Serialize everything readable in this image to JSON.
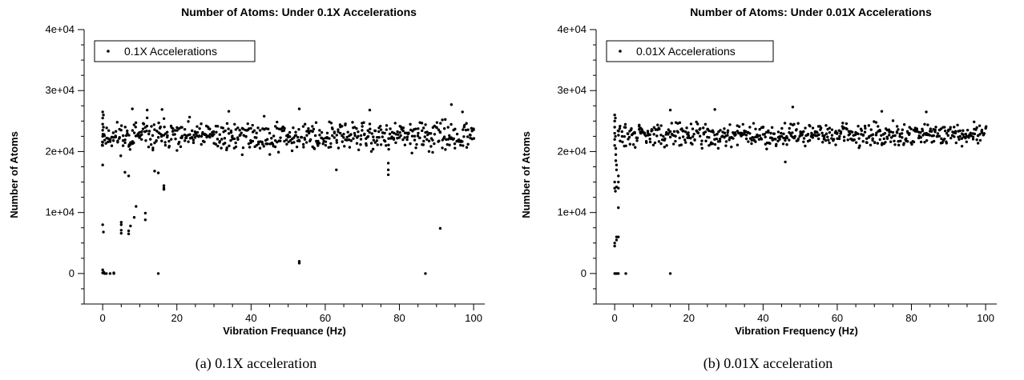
{
  "chart_data": [
    {
      "type": "scatter",
      "title": "Number of Atoms: Under 0.1X Accelerations",
      "xlabel": "Vibration Frequance (Hz)",
      "ylabel": "Number of Atoms",
      "xlim": [
        -5,
        103
      ],
      "ylim": [
        -5000,
        40000
      ],
      "xticks": [
        0,
        20,
        40,
        60,
        80,
        100
      ],
      "yticks": [
        0,
        10000,
        20000,
        30000,
        40000
      ],
      "ytick_labels": [
        "0",
        "1e+04",
        "2e+04",
        "3e+04",
        "4e+04"
      ],
      "legend": {
        "entries": [
          "0.1X Accelerations"
        ],
        "placement": "top-left"
      },
      "caption": "(a) 0.1X acceleration",
      "seed": 11,
      "series": [
        {
          "name": "0.1X Accelerations",
          "band": {
            "x_range": [
              0,
              100
            ],
            "x_step": 0.5,
            "y_min": 19000,
            "y_max": 26000,
            "per_step": 3
          },
          "points": [
            [
              0,
              26500
            ],
            [
              0,
              25500
            ],
            [
              0,
              24500
            ],
            [
              0,
              23500
            ],
            [
              0,
              22500
            ],
            [
              0,
              21500
            ],
            [
              0,
              21000
            ],
            [
              0.2,
              26000
            ],
            [
              0.2,
              24000
            ],
            [
              0,
              17800
            ],
            [
              0,
              8000
            ],
            [
              0.2,
              6800
            ],
            [
              0,
              600
            ],
            [
              0,
              100
            ],
            [
              0.3,
              200
            ],
            [
              0.5,
              0
            ],
            [
              1,
              0
            ],
            [
              2,
              0
            ],
            [
              3,
              0
            ],
            [
              3,
              100
            ],
            [
              5,
              6600
            ],
            [
              5,
              7100
            ],
            [
              5,
              8000
            ],
            [
              5,
              8400
            ],
            [
              7,
              6500
            ],
            [
              7,
              7000
            ],
            [
              7.5,
              7800
            ],
            [
              8.5,
              9200
            ],
            [
              9,
              11000
            ],
            [
              11.5,
              8800
            ],
            [
              11.5,
              9900
            ],
            [
              6,
              16600
            ],
            [
              7,
              16000
            ],
            [
              14,
              16800
            ],
            [
              15,
              16500
            ],
            [
              15,
              0
            ],
            [
              16.5,
              14400
            ],
            [
              16.5,
              13800
            ],
            [
              16.5,
              14000
            ],
            [
              53,
              2000
            ],
            [
              53,
              1700
            ],
            [
              63,
              17000
            ],
            [
              77,
              17000
            ],
            [
              77,
              16200
            ],
            [
              77,
              18100
            ],
            [
              87,
              0
            ],
            [
              91,
              7400
            ],
            [
              8,
              27000
            ],
            [
              12,
              26800
            ],
            [
              16,
              26900
            ],
            [
              34,
              26600
            ],
            [
              53,
              27000
            ],
            [
              72,
              26800
            ],
            [
              94,
              27700
            ],
            [
              97,
              26500
            ]
          ]
        }
      ]
    },
    {
      "type": "scatter",
      "title": "Number of Atoms: Under 0.01X Accelerations",
      "xlabel": "Vibration Frequency (Hz)",
      "ylabel": "Number of Atoms",
      "xlim": [
        -5,
        103
      ],
      "ylim": [
        -5000,
        40000
      ],
      "xticks": [
        0,
        20,
        40,
        60,
        80,
        100
      ],
      "yticks": [
        0,
        10000,
        20000,
        30000,
        40000
      ],
      "ytick_labels": [
        "0",
        "1e+04",
        "2e+04",
        "3e+04",
        "4e+04"
      ],
      "legend": {
        "entries": [
          "0.01X Accelerations"
        ],
        "placement": "top-left"
      },
      "caption": "(b) 0.01X acceleration",
      "seed": 29,
      "series": [
        {
          "name": "0.01X Accelerations",
          "band": {
            "x_range": [
              1,
              100
            ],
            "x_step": 0.5,
            "y_min": 20000,
            "y_max": 25500,
            "per_step": 3
          },
          "points": [
            [
              0,
              26000
            ],
            [
              0,
              25000
            ],
            [
              0,
              24000
            ],
            [
              0,
              23000
            ],
            [
              0,
              22000
            ],
            [
              0,
              21000
            ],
            [
              0.2,
              25500
            ],
            [
              0.2,
              22500
            ],
            [
              0.3,
              20500
            ],
            [
              0.3,
              19500
            ],
            [
              0.3,
              18500
            ],
            [
              0.5,
              17800
            ],
            [
              0.5,
              17000
            ],
            [
              0,
              15000
            ],
            [
              0,
              14000
            ],
            [
              0.2,
              13500
            ],
            [
              0.5,
              14200
            ],
            [
              1,
              16000
            ],
            [
              1,
              15000
            ],
            [
              1,
              14000
            ],
            [
              1,
              10800
            ],
            [
              0.5,
              6000
            ],
            [
              0.5,
              5500
            ],
            [
              0,
              5000
            ],
            [
              0,
              4500
            ],
            [
              1,
              6000
            ],
            [
              0,
              0
            ],
            [
              0.3,
              0
            ],
            [
              0.6,
              0
            ],
            [
              1,
              0
            ],
            [
              3,
              0
            ],
            [
              15,
              0
            ],
            [
              15,
              26800
            ],
            [
              27,
              26900
            ],
            [
              48,
              27300
            ],
            [
              46,
              18300
            ],
            [
              72,
              26600
            ],
            [
              84,
              26500
            ]
          ]
        }
      ]
    }
  ]
}
